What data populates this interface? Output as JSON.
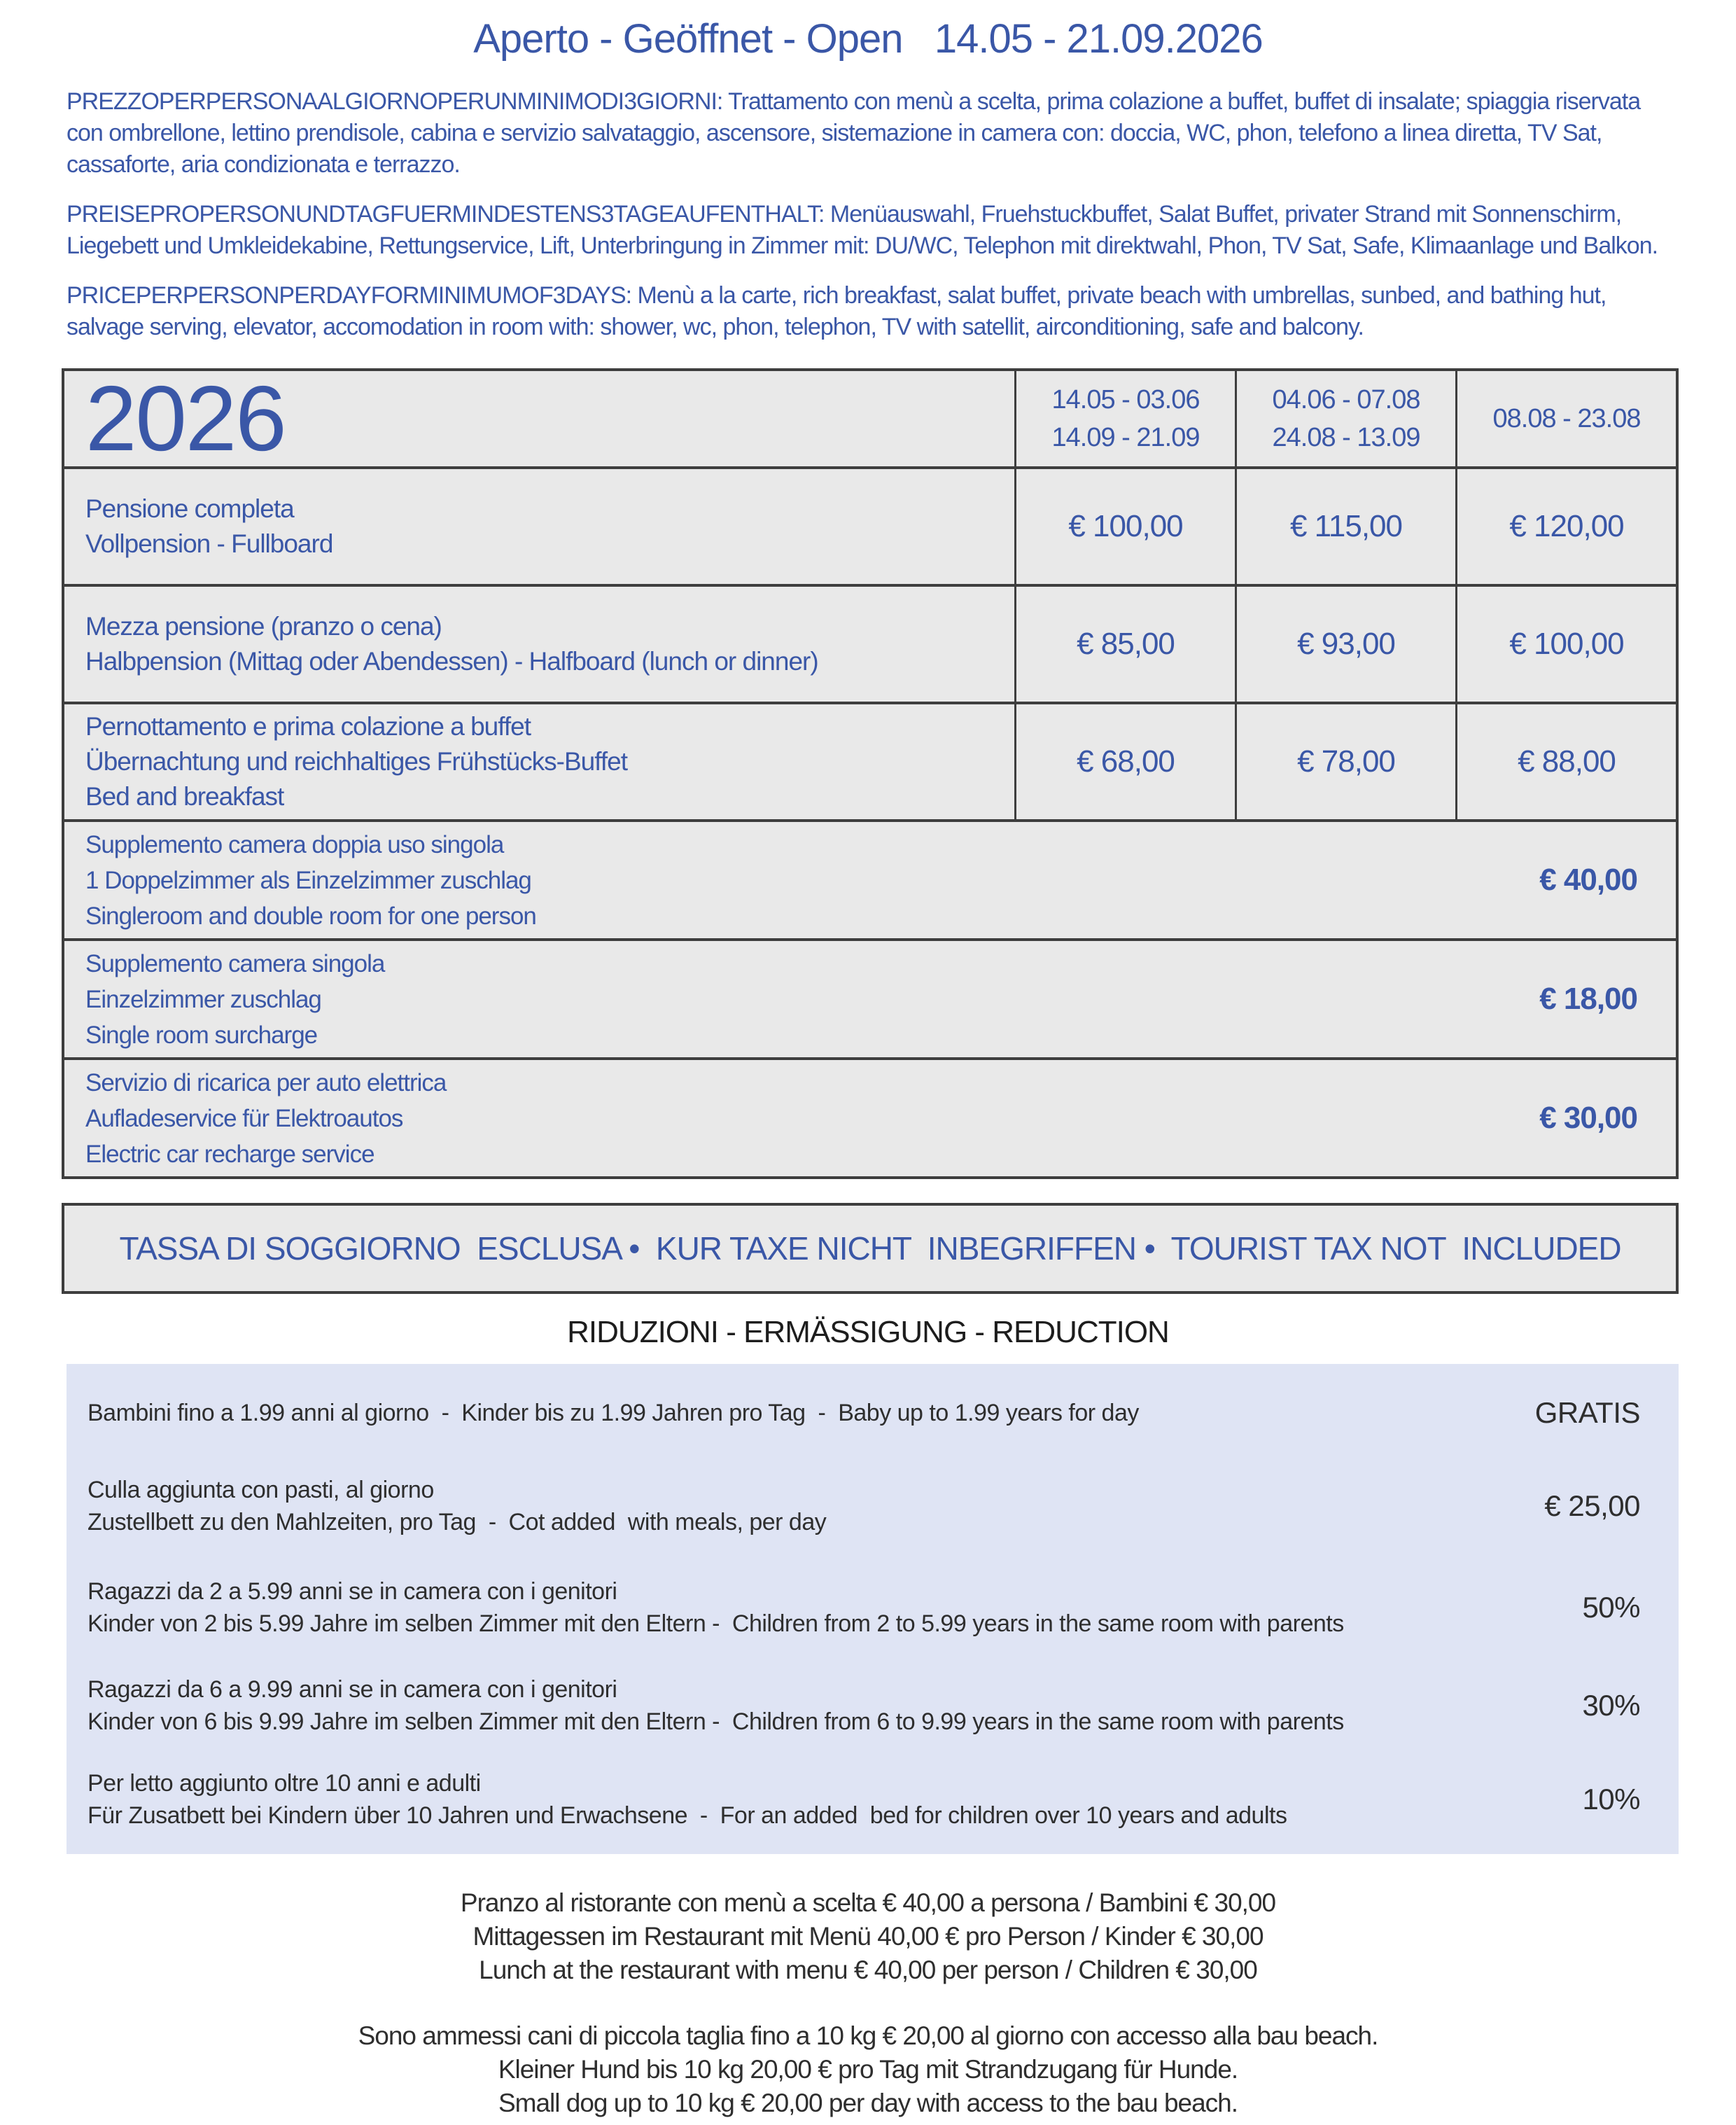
{
  "page": {
    "title": "Aperto - Geöffnet - Open   14.05 - 21.09.2026"
  },
  "intro": {
    "italian": "PREZZOPERPERSONAALGIORNOPERUNMINIMODI3GIORNI: Trattamento con menù a scelta, prima colazione a buffet, buffet di insalate; spiaggia riservata con ombrellone, lettino prendisole, cabina e servizio salvataggio, ascensore, sistemazione in camera con: doccia, WC, phon, telefono a linea diretta, TV Sat, cassaforte, aria condizionata e terrazzo.",
    "german": "PREISEPROPERSONUNDTAGFUERMINDESTENS3TAGEAUFENTHALT: Menüauswahl, Fruehstuckbuffet, Salat Buffet, privater Strand mit Sonnenschirm, Liegebett und Umkleidekabine, Rettungservice, Lift, Unterbringung in Zimmer mit: DU/WC, Telephon mit direktwahl, Phon, TV Sat, Safe, Klimaanlage und Balkon.",
    "english": "PRICEPERPERSONPERDAYFORMINIMUMOF3DAYS: Menù a la carte, rich breakfast, salat buffet, private beach with umbrellas, sunbed, and bathing hut, salvage serving, elevator, accomodation in room with: shower, wc, phon, telephon, TV with satellit, airconditioning, safe and balcony."
  },
  "price_table": {
    "year": "2026",
    "season_columns": [
      {
        "lines": [
          "14.05 - 03.06",
          "14.09 - 21.09"
        ]
      },
      {
        "lines": [
          "04.06 - 07.08",
          "24.08 - 13.09"
        ]
      },
      {
        "lines": [
          "08.08 - 23.08"
        ]
      }
    ],
    "board_rows": [
      {
        "labels": [
          "Pensione completa",
          "Vollpension - Fullboard"
        ],
        "prices": [
          "€ 100,00",
          "€ 115,00",
          "€ 120,00"
        ]
      },
      {
        "labels": [
          "Mezza pensione (pranzo o cena)",
          "Halbpension (Mittag oder Abendessen) - Halfboard (lunch or dinner)"
        ],
        "prices": [
          "€ 85,00",
          "€ 93,00",
          "€ 100,00"
        ]
      },
      {
        "labels": [
          "Pernottamento e prima colazione a buffet",
          "Übernachtung und reichhaltiges Frühstücks-Buffet",
          "Bed and breakfast"
        ],
        "prices": [
          "€ 68,00",
          "€ 78,00",
          "€ 88,00"
        ]
      }
    ],
    "supplement_rows": [
      {
        "labels": [
          "Supplemento camera doppia uso singola",
          "1 Doppelzimmer als Einzelzimmer zuschlag",
          "Singleroom and double room for one person"
        ],
        "price": "€ 40,00"
      },
      {
        "labels": [
          "Supplemento camera singola",
          "Einzelzimmer zuschlag",
          "Single room surcharge"
        ],
        "price": "€ 18,00"
      },
      {
        "labels": [
          "Servizio di ricarica per auto elettrica",
          "Aufladeservice für Elektroautos",
          "Electric car recharge service"
        ],
        "price": "€ 30,00"
      }
    ]
  },
  "tax_note": "TASSA DI SOGGIORNO  ESCLUSA •  KUR TAXE NICHT  INBEGRIFFEN •  TOURIST TAX NOT  INCLUDED",
  "reductions": {
    "title": "RIDUZIONI - ERMÄSSIGUNG - REDUCTION",
    "rows": [
      {
        "labels": [
          "Bambini fino a 1.99 anni al giorno  -  Kinder bis zu 1.99 Jahren pro Tag  -  Baby up to 1.99 years for day"
        ],
        "value": "GRATIS"
      },
      {
        "labels": [
          "Culla aggiunta con pasti, al giorno",
          "Zustellbett zu den Mahlzeiten, pro Tag  -  Cot added  with meals, per day"
        ],
        "value": "€ 25,00"
      },
      {
        "labels": [
          "Ragazzi da 2 a 5.99 anni se in camera con i genitori",
          "Kinder von 2 bis 5.99 Jahre im selben Zimmer mit den Eltern -  Children from 2 to 5.99 years in the same room with parents"
        ],
        "value": "50%"
      },
      {
        "labels": [
          "Ragazzi da 6 a 9.99 anni se in camera con i genitori",
          "Kinder von 6 bis 9.99 Jahre im selben Zimmer mit den Eltern -  Children from 6 to 9.99 years in the same room with parents"
        ],
        "value": "30%"
      },
      {
        "labels": [
          "Per letto aggiunto oltre 10 anni e adulti",
          "Für Zusatbett bei Kindern über 10 Jahren und Erwachsene  -  For an added  bed for children over 10 years and adults"
        ],
        "value": "10%"
      }
    ]
  },
  "restaurant_note": {
    "lines": [
      "Pranzo al ristorante con menù a scelta € 40,00 a persona / Bambini € 30,00",
      "Mittagessen im Restaurant mit Menü 40,00 € pro Person / Kinder € 30,00",
      "Lunch at the restaurant with menu € 40,00 per person / Children € 30,00"
    ]
  },
  "dog_note": {
    "lines": [
      "Sono ammessi cani di piccola taglia fino a 10 kg € 20,00 al giorno con accesso alla bau beach.",
      "Kleiner Hund bis 10 kg 20,00 € pro Tag mit Strandzugang für Hunde.",
      "Small dog up to 10 kg € 20,00 per day with access to the bau beach."
    ]
  },
  "colors": {
    "accent_blue": "#3a57a7",
    "table_background": "#e9e9e9",
    "reductions_background": "#dfe4f4",
    "border": "#3e3e3e",
    "text_dark": "#2e2e2e"
  }
}
